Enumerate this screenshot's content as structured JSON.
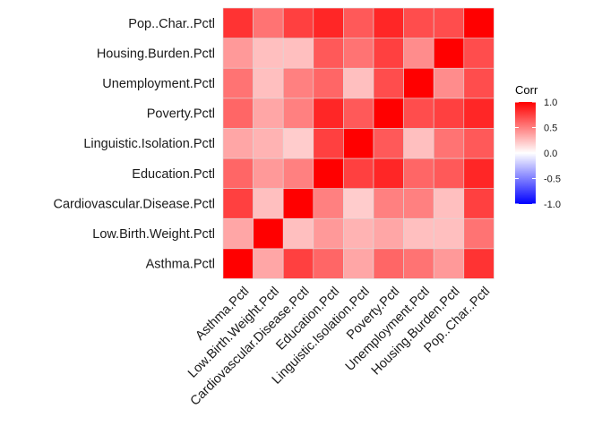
{
  "chart_data": {
    "type": "heatmap",
    "variables": [
      "Asthma.Pctl",
      "Low.Birth.Weight.Pctl",
      "Cardiovascular.Disease.Pctl",
      "Education.Pctl",
      "Linguistic.Isolation.Pctl",
      "Poverty.Pctl",
      "Unemployment.Pctl",
      "Housing.Burden.Pctl",
      "Pop..Char..Pctl"
    ],
    "matrix": [
      [
        1.0,
        0.35,
        0.75,
        0.6,
        0.35,
        0.6,
        0.55,
        0.4,
        0.8
      ],
      [
        0.35,
        1.0,
        0.25,
        0.4,
        0.3,
        0.35,
        0.25,
        0.25,
        0.55
      ],
      [
        0.75,
        0.25,
        1.0,
        0.5,
        0.2,
        0.5,
        0.5,
        0.25,
        0.75
      ],
      [
        0.6,
        0.4,
        0.5,
        1.0,
        0.75,
        0.85,
        0.6,
        0.65,
        0.85
      ],
      [
        0.35,
        0.3,
        0.2,
        0.75,
        1.0,
        0.65,
        0.25,
        0.55,
        0.65
      ],
      [
        0.6,
        0.35,
        0.5,
        0.85,
        0.65,
        1.0,
        0.7,
        0.75,
        0.85
      ],
      [
        0.55,
        0.25,
        0.5,
        0.6,
        0.25,
        0.7,
        1.0,
        0.45,
        0.7
      ],
      [
        0.4,
        0.25,
        0.25,
        0.65,
        0.55,
        0.75,
        0.45,
        1.0,
        0.7
      ],
      [
        0.8,
        0.55,
        0.75,
        0.85,
        0.65,
        0.85,
        0.7,
        0.7,
        1.0
      ]
    ],
    "legend": {
      "title": "Corr",
      "ticks": [
        "1.0",
        "0.5",
        "0.0",
        "-0.5",
        "-1.0"
      ],
      "tick_values": [
        1.0,
        0.5,
        0.0,
        -0.5,
        -1.0
      ],
      "range": [
        -1,
        1
      ],
      "color_low": "#0000ff",
      "color_mid": "#ffffff",
      "color_high": "#ff0000"
    },
    "grid": false,
    "legend_position": "right"
  }
}
